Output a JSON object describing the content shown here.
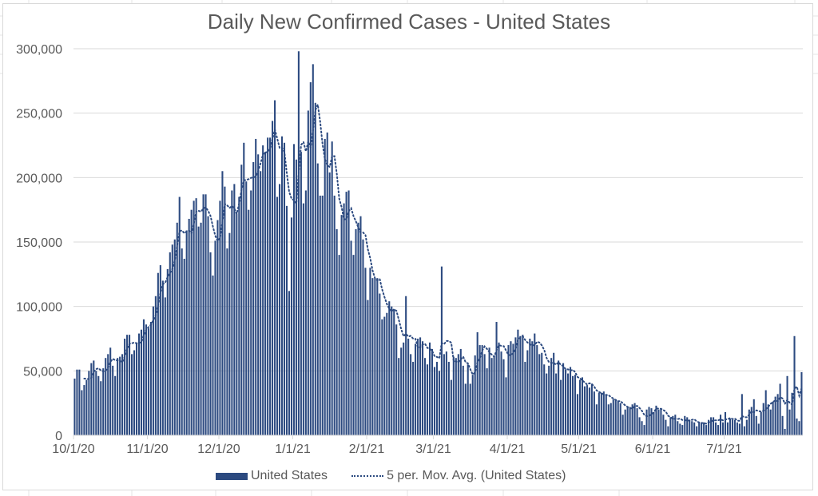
{
  "colors": {
    "bar": "#2c4a80",
    "gap": "#b9c4d8",
    "grid": "#d9d9d9",
    "text": "#595959"
  },
  "chart_data": {
    "type": "bar",
    "title": "Daily New Confirmed Cases - United States",
    "xlabel": "",
    "ylabel": "",
    "ylim": [
      0,
      300000
    ],
    "grid": true,
    "legend_position": "bottom",
    "y_ticks": [
      "0",
      "50,000",
      "100,000",
      "150,000",
      "200,000",
      "250,000",
      "300,000"
    ],
    "y_tick_values": [
      0,
      50000,
      100000,
      150000,
      200000,
      250000,
      300000
    ],
    "x_ticks": [
      "10/1/20",
      "11/1/20",
      "12/1/20",
      "1/1/21",
      "2/1/21",
      "3/1/21",
      "4/1/21",
      "5/1/21",
      "6/1/21",
      "7/1/21"
    ],
    "x_tick_day_index": [
      0,
      31,
      61,
      92,
      123,
      151,
      182,
      212,
      243,
      273
    ],
    "start_date": "10/1/20",
    "series": [
      {
        "name": "United States",
        "kind": "bar",
        "values": [
          44000,
          51000,
          51000,
          35000,
          39000,
          43000,
          50000,
          56000,
          58000,
          50000,
          46000,
          42000,
          52000,
          60000,
          63000,
          68000,
          54000,
          46000,
          60000,
          61000,
          63000,
          75000,
          78000,
          78000,
          63000,
          66000,
          72000,
          79000,
          82000,
          90000,
          86000,
          83000,
          88000,
          100000,
          108000,
          126000,
          132000,
          120000,
          107000,
          129000,
          142000,
          148000,
          152000,
          165000,
          185000,
          145000,
          137000,
          159000,
          168000,
          175000,
          182000,
          184000,
          162000,
          165000,
          187000,
          187000,
          170000,
          142000,
          124000,
          151000,
          167000,
          182000,
          205000,
          193000,
          145000,
          157000,
          190000,
          195000,
          172000,
          185000,
          210000,
          227000,
          197000,
          175000,
          190000,
          212000,
          230000,
          218000,
          205000,
          225000,
          220000,
          231000,
          231000,
          244000,
          260000,
          185000,
          195000,
          232000,
          227000,
          178000,
          112000,
          169000,
          226000,
          214000,
          298000,
          220000,
          180000,
          190000,
          252000,
          274000,
          288000,
          258000,
          211000,
          186000,
          186000,
          230000,
          235000,
          204000,
          228000,
          186000,
          160000,
          140000,
          171000,
          180000,
          189000,
          190000,
          151000,
          140000,
          160000,
          165000,
          170000,
          152000,
          130000,
          105000,
          130000,
          122000,
          122000,
          122000,
          110000,
          90000,
          92000,
          95000,
          104000,
          100000,
          98000,
          86000,
          60000,
          68000,
          72000,
          108000,
          75000,
          63000,
          57000,
          71000,
          75000,
          76000,
          73000,
          60000,
          55000,
          72000,
          67000,
          53000,
          57000,
          50000,
          131000,
          63000,
          65000,
          57000,
          43000,
          61000,
          60000,
          63000,
          67000,
          54000,
          40000,
          55000,
          40000,
          47000,
          62000,
          80000,
          70000,
          70000,
          63000,
          52000,
          68000,
          60000,
          62000,
          88000,
          72000,
          65000,
          59000,
          45000,
          70000,
          73000,
          71000,
          76000,
          82000,
          77000,
          78000,
          57000,
          66000,
          75000,
          73000,
          79000,
          70000,
          63000,
          64000,
          55000,
          48000,
          54000,
          60000,
          64000,
          48000,
          58000,
          43000,
          56000,
          51000,
          48000,
          53000,
          46000,
          47000,
          32000,
          43000,
          45000,
          38000,
          39000,
          37000,
          40000,
          34000,
          24000,
          33000,
          33000,
          34000,
          32000,
          24000,
          25000,
          28000,
          28000,
          27000,
          25000,
          16000,
          20000,
          22000,
          22000,
          24000,
          25000,
          21000,
          14000,
          11000,
          8000,
          20000,
          22000,
          21000,
          18000,
          23000,
          20000,
          21000,
          16000,
          12000,
          7000,
          14000,
          15000,
          16000,
          11000,
          9000,
          8000,
          15000,
          14000,
          12000,
          11000,
          10000,
          7000,
          10000,
          10000,
          10000,
          8000,
          12000,
          14000,
          14000,
          10000,
          8000,
          16000,
          10000,
          18000,
          10000,
          13000,
          12000,
          12000,
          10000,
          9000,
          32000,
          7000,
          12000,
          20000,
          22000,
          28000,
          15000,
          9000,
          18000,
          25000,
          35000,
          24000,
          20000,
          26000,
          30000,
          32000,
          40000,
          15000,
          5000,
          46000,
          20000,
          33000,
          77000,
          13000,
          11000,
          49000
        ]
      },
      {
        "name": "5 per. Mov. Avg. (United States)",
        "kind": "line",
        "period": 5
      }
    ]
  }
}
